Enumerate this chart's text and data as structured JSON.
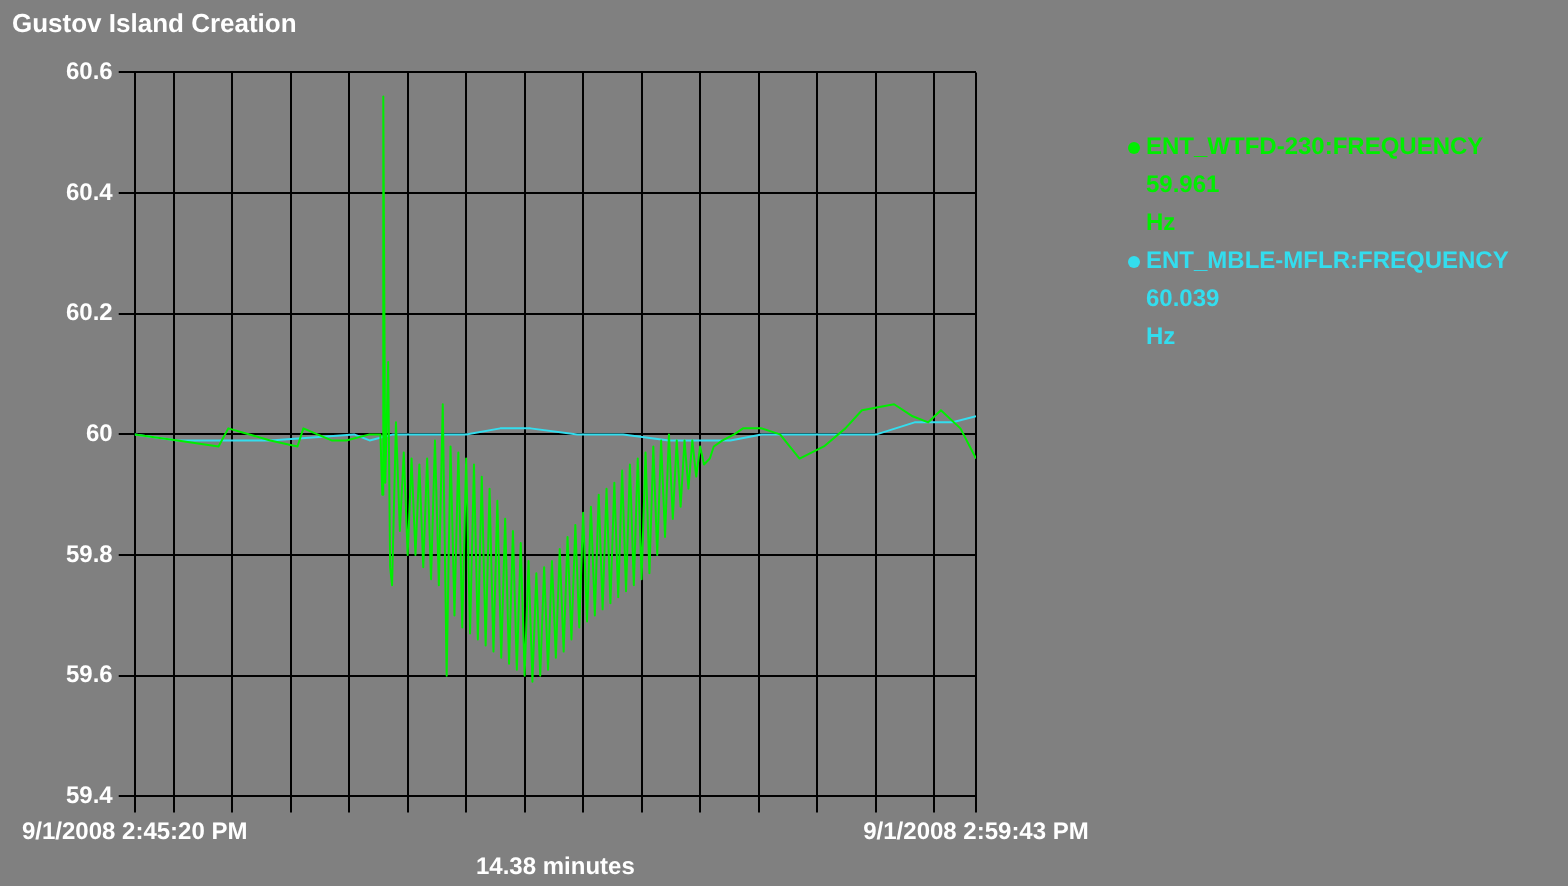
{
  "chart_data": {
    "type": "line",
    "title": "Gustov Island Creation",
    "xlabel": "14.38 minutes",
    "xlim": [
      "2008-09-01T14:45:20",
      "2008-09-01T14:59:43"
    ],
    "xticks": [
      {
        "value": "2008-09-01T14:45:20",
        "label": "9/1/2008 2:45:20 PM"
      },
      {
        "value": "2008-09-01T14:46:00",
        "label": null
      },
      {
        "value": "2008-09-01T14:47:00",
        "label": null
      },
      {
        "value": "2008-09-01T14:48:00",
        "label": null
      },
      {
        "value": "2008-09-01T14:49:00",
        "label": null
      },
      {
        "value": "2008-09-01T14:50:00",
        "label": null
      },
      {
        "value": "2008-09-01T14:51:00",
        "label": null
      },
      {
        "value": "2008-09-01T14:52:00",
        "label": null
      },
      {
        "value": "2008-09-01T14:53:00",
        "label": null
      },
      {
        "value": "2008-09-01T14:54:00",
        "label": null
      },
      {
        "value": "2008-09-01T14:55:00",
        "label": null
      },
      {
        "value": "2008-09-01T14:56:00",
        "label": null
      },
      {
        "value": "2008-09-01T14:57:00",
        "label": null
      },
      {
        "value": "2008-09-01T14:58:00",
        "label": null
      },
      {
        "value": "2008-09-01T14:59:00",
        "label": null
      },
      {
        "value": "2008-09-01T14:59:43",
        "label": "9/1/2008 2:59:43 PM"
      }
    ],
    "ylim": [
      59.4,
      60.6
    ],
    "yticks": [
      59.4,
      59.6,
      59.8,
      60,
      60.2,
      60.4,
      60.6
    ],
    "grid": true,
    "legend": "right",
    "annotations": [
      "59.961",
      "Hz",
      "60.039",
      "Hz"
    ],
    "series": [
      {
        "name": "ENT_WTFD-230:FREQUENCY",
        "color": "#00ee00",
        "x": [
          "2008-09-01T14:45:20",
          "2008-09-01T14:46:04",
          "2008-09-01T14:46:46",
          "2008-09-01T14:46:56",
          "2008-09-01T14:47:39",
          "2008-09-01T14:48:07",
          "2008-09-01T14:48:13",
          "2008-09-01T14:48:42",
          "2008-09-01T14:48:57",
          "2008-09-01T14:49:21",
          "2008-09-01T14:49:32",
          "2008-09-01T14:49:34",
          "2008-09-01T14:49:35",
          "2008-09-01T14:49:37",
          "2008-09-01T14:49:40",
          "2008-09-01T14:49:42",
          "2008-09-01T14:49:44",
          "2008-09-01T14:49:48",
          "2008-09-01T14:49:52",
          "2008-09-01T14:49:56",
          "2008-09-01T14:50:00",
          "2008-09-01T14:50:04",
          "2008-09-01T14:50:08",
          "2008-09-01T14:50:12",
          "2008-09-01T14:50:16",
          "2008-09-01T14:50:20",
          "2008-09-01T14:50:24",
          "2008-09-01T14:50:28",
          "2008-09-01T14:50:32",
          "2008-09-01T14:50:36",
          "2008-09-01T14:50:40",
          "2008-09-01T14:50:44",
          "2008-09-01T14:50:48",
          "2008-09-01T14:50:52",
          "2008-09-01T14:50:56",
          "2008-09-01T14:51:00",
          "2008-09-01T14:51:04",
          "2008-09-01T14:51:08",
          "2008-09-01T14:51:12",
          "2008-09-01T14:51:16",
          "2008-09-01T14:51:20",
          "2008-09-01T14:51:24",
          "2008-09-01T14:51:28",
          "2008-09-01T14:51:32",
          "2008-09-01T14:51:36",
          "2008-09-01T14:51:40",
          "2008-09-01T14:51:44",
          "2008-09-01T14:51:48",
          "2008-09-01T14:51:52",
          "2008-09-01T14:51:56",
          "2008-09-01T14:52:00",
          "2008-09-01T14:52:04",
          "2008-09-01T14:52:08",
          "2008-09-01T14:52:12",
          "2008-09-01T14:52:16",
          "2008-09-01T14:52:20",
          "2008-09-01T14:52:24",
          "2008-09-01T14:52:28",
          "2008-09-01T14:52:32",
          "2008-09-01T14:52:36",
          "2008-09-01T14:52:40",
          "2008-09-01T14:52:44",
          "2008-09-01T14:52:48",
          "2008-09-01T14:52:52",
          "2008-09-01T14:52:56",
          "2008-09-01T14:53:00",
          "2008-09-01T14:53:04",
          "2008-09-01T14:53:08",
          "2008-09-01T14:53:12",
          "2008-09-01T14:53:16",
          "2008-09-01T14:53:20",
          "2008-09-01T14:53:24",
          "2008-09-01T14:53:28",
          "2008-09-01T14:53:32",
          "2008-09-01T14:53:36",
          "2008-09-01T14:53:40",
          "2008-09-01T14:53:44",
          "2008-09-01T14:53:48",
          "2008-09-01T14:53:52",
          "2008-09-01T14:53:56",
          "2008-09-01T14:54:00",
          "2008-09-01T14:54:04",
          "2008-09-01T14:54:08",
          "2008-09-01T14:54:12",
          "2008-09-01T14:54:16",
          "2008-09-01T14:54:20",
          "2008-09-01T14:54:24",
          "2008-09-01T14:54:28",
          "2008-09-01T14:54:32",
          "2008-09-01T14:54:36",
          "2008-09-01T14:54:40",
          "2008-09-01T14:54:44",
          "2008-09-01T14:54:48",
          "2008-09-01T14:54:52",
          "2008-09-01T14:54:56",
          "2008-09-01T14:55:00",
          "2008-09-01T14:55:04",
          "2008-09-01T14:55:10",
          "2008-09-01T14:55:14",
          "2008-09-01T14:55:23",
          "2008-09-01T14:55:35",
          "2008-09-01T14:55:44",
          "2008-09-01T14:56:03",
          "2008-09-01T14:56:22",
          "2008-09-01T14:56:42",
          "2008-09-01T14:57:07",
          "2008-09-01T14:57:29",
          "2008-09-01T14:57:46",
          "2008-09-01T14:58:19",
          "2008-09-01T14:58:38",
          "2008-09-01T14:58:54",
          "2008-09-01T14:59:07",
          "2008-09-01T14:59:27",
          "2008-09-01T14:59:43"
        ],
        "values": [
          60.0,
          59.99,
          59.98,
          60.01,
          59.99,
          59.98,
          60.01,
          59.99,
          59.99,
          60.0,
          60.0,
          59.9,
          60.56,
          59.92,
          60.12,
          59.78,
          59.75,
          60.02,
          59.84,
          59.97,
          59.8,
          59.96,
          59.8,
          59.95,
          59.78,
          59.96,
          59.76,
          59.99,
          59.75,
          60.05,
          59.6,
          59.98,
          59.7,
          59.97,
          59.68,
          59.96,
          59.67,
          59.95,
          59.66,
          59.93,
          59.65,
          59.91,
          59.64,
          59.89,
          59.63,
          59.86,
          59.62,
          59.84,
          59.61,
          59.82,
          59.6,
          59.79,
          59.59,
          59.77,
          59.6,
          59.78,
          59.61,
          59.79,
          59.63,
          59.81,
          59.64,
          59.83,
          59.66,
          59.85,
          59.68,
          59.87,
          59.69,
          59.88,
          59.7,
          59.9,
          59.71,
          59.91,
          59.72,
          59.92,
          59.73,
          59.94,
          59.74,
          59.95,
          59.75,
          59.96,
          59.76,
          59.97,
          59.77,
          59.98,
          59.8,
          59.99,
          59.83,
          60.0,
          59.86,
          59.99,
          59.88,
          59.99,
          59.91,
          59.99,
          59.93,
          59.98,
          59.95,
          59.96,
          59.98,
          59.99,
          60.0,
          60.01,
          60.01,
          60.0,
          59.96,
          59.98,
          60.01,
          60.04,
          60.05,
          60.03,
          60.02,
          60.04,
          60.01,
          59.96
        ]
      },
      {
        "name": "ENT_MBLE-MFLR:FREQUENCY",
        "color": "#33ddee",
        "x": [
          "2008-09-01T14:45:20",
          "2008-09-01T14:46:04",
          "2008-09-01T14:47:39",
          "2008-09-01T14:49:05",
          "2008-09-01T14:49:21",
          "2008-09-01T14:49:45",
          "2008-09-01T14:50:24",
          "2008-09-01T14:51:00",
          "2008-09-01T14:51:35",
          "2008-09-01T14:52:06",
          "2008-09-01T14:52:54",
          "2008-09-01T14:53:09",
          "2008-09-01T14:53:41",
          "2008-09-01T14:54:28",
          "2008-09-01T14:55:31",
          "2008-09-01T14:56:03",
          "2008-09-01T14:57:01",
          "2008-09-01T14:57:37",
          "2008-09-01T14:58:01",
          "2008-09-01T14:58:40",
          "2008-09-01T14:59:19",
          "2008-09-01T14:59:43"
        ],
        "values": [
          60.0,
          59.99,
          59.99,
          60.0,
          59.99,
          60.0,
          60.0,
          60.0,
          60.01,
          60.01,
          60.0,
          60.0,
          60.0,
          59.99,
          59.99,
          60.0,
          60.0,
          60.0,
          60.0,
          60.02,
          60.02,
          60.03
        ]
      }
    ]
  }
}
